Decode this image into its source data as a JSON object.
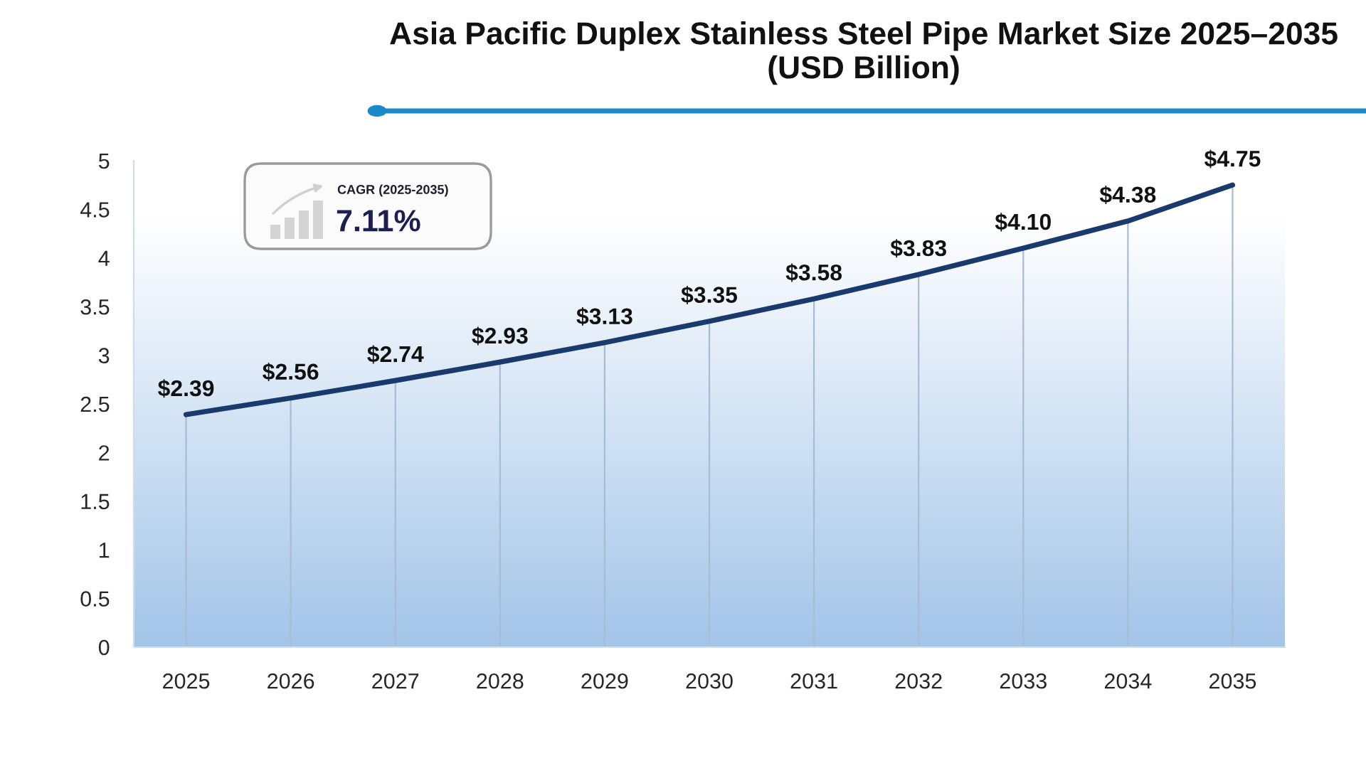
{
  "chart_data": {
    "type": "line",
    "title": "Asia Pacific Duplex Stainless Steel Pipe Market Size 2025–2035 (USD Billion)",
    "annotations": [
      "CAGR (2025-2035)",
      "7.11%"
    ],
    "categories": [
      "2025",
      "2026",
      "2027",
      "2028",
      "2029",
      "2030",
      "2031",
      "2032",
      "2033",
      "2034",
      "2035"
    ],
    "series": [
      {
        "color": "#1a3a6e",
        "values": [
          2.39,
          2.56,
          2.74,
          2.93,
          3.13,
          3.35,
          3.58,
          3.83,
          4.1,
          4.38,
          4.75
        ],
        "value_labels": [
          "$2.39",
          "$2.56",
          "$2.74",
          "$2.93",
          "$3.13",
          "$3.35",
          "$3.58",
          "$3.83",
          "$4.10",
          "$4.38",
          "$4.75"
        ]
      }
    ],
    "ylim": [
      0,
      5
    ],
    "yticks": [
      0,
      0.5,
      1,
      1.5,
      2,
      2.5,
      3,
      3.5,
      4,
      4.5,
      5
    ],
    "grid": "x"
  }
}
